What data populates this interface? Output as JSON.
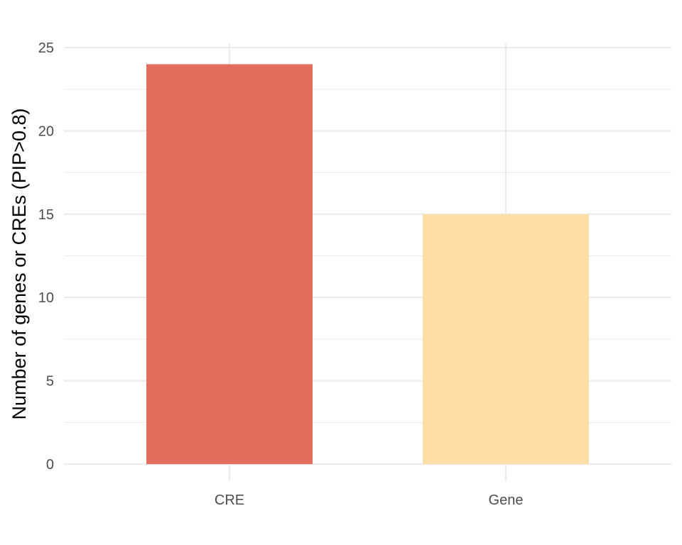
{
  "chart_data": {
    "type": "bar",
    "title": "",
    "xlabel": "",
    "ylabel": "Number of genes or CREs (PIP>0.8)",
    "categories": [
      "CRE",
      "Gene"
    ],
    "values": [
      24,
      15
    ],
    "colors": [
      "#E46E5E",
      "#FDDEA6"
    ],
    "ylim": [
      0,
      25
    ],
    "yticks": [
      0,
      5,
      10,
      15,
      20,
      25
    ],
    "yticks_labels": [
      "0",
      "5",
      "10",
      "15",
      "20",
      "25"
    ],
    "grid": true,
    "legend": "none"
  }
}
